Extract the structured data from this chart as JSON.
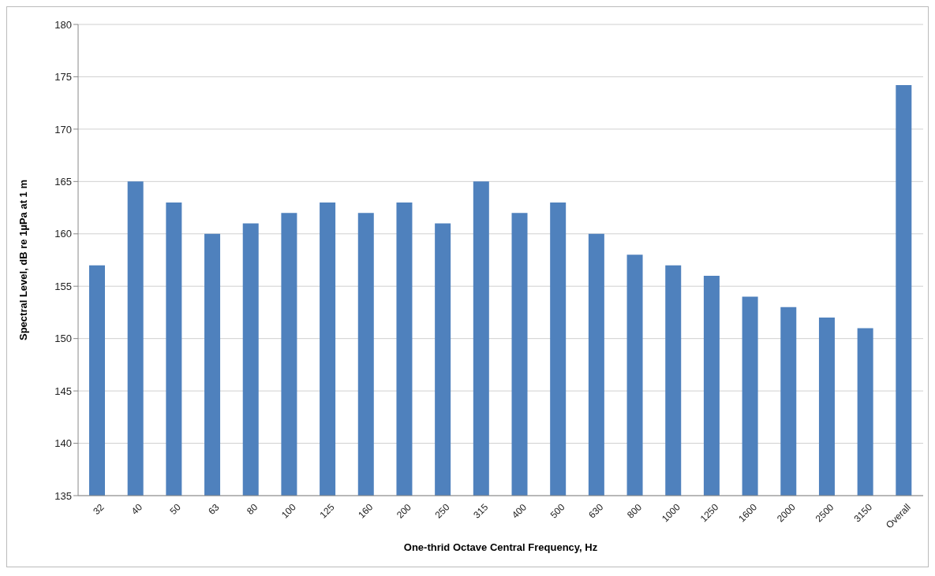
{
  "chart_data": {
    "type": "bar",
    "xlabel": "One-thrid Octave Central Frequency, Hz",
    "ylabel": "Spectral Level, dB re 1µPa at 1 m",
    "categories": [
      "32",
      "40",
      "50",
      "63",
      "80",
      "100",
      "125",
      "160",
      "200",
      "250",
      "315",
      "400",
      "500",
      "630",
      "800",
      "1000",
      "1250",
      "1600",
      "2000",
      "2500",
      "3150",
      "Overall"
    ],
    "values": [
      157,
      165,
      163,
      160,
      161,
      162,
      163,
      162,
      163,
      161,
      165,
      162,
      163,
      160,
      158,
      157,
      156,
      154,
      153,
      152,
      151,
      174.2
    ],
    "color": "#4f81bd",
    "ylim": [
      135,
      180
    ],
    "yticks": [
      135,
      140,
      145,
      150,
      155,
      160,
      165,
      170,
      175,
      180
    ],
    "grid": "y"
  }
}
